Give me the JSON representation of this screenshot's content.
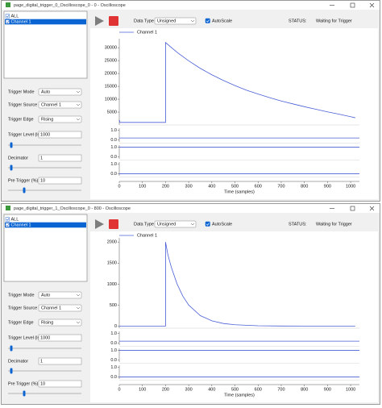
{
  "windows": [
    {
      "title": "page_digital_trigger_0_Oscilloscope_0 - 0 - Oscilloscope",
      "tree": [
        {
          "label": "ALL",
          "selected": false
        },
        {
          "label": "Channel 1",
          "selected": true
        }
      ],
      "controls": [
        {
          "label": "Trigger Mode",
          "value": "Auto",
          "kind": "select"
        },
        {
          "label": "Trigger Source",
          "value": "Channel 1",
          "kind": "select"
        },
        {
          "label": "Trigger Edge",
          "value": "Rising",
          "kind": "select"
        },
        {
          "label": "Trigger Level (lsb)",
          "value": "1000",
          "kind": "input"
        },
        {
          "label": "Decimator",
          "value": "1",
          "kind": "input"
        },
        {
          "label": "Pre Trigger (%)",
          "value": "10",
          "kind": "input"
        }
      ],
      "toolbar": {
        "data_type_label": "Data Type",
        "data_type": "Unsigned",
        "autoscale_label": "AutoScale",
        "autoscale_checked": true,
        "status_label": "STATUS:",
        "status": "Waiting for Trigger"
      },
      "chart_data": {
        "type": "line",
        "x_label": "Time (samples)",
        "xlim": [
          0,
          1038
        ],
        "xticks": [
          0,
          100,
          200,
          300,
          400,
          500,
          600,
          700,
          800,
          900,
          1000
        ],
        "ylim": [
          0,
          33500
        ],
        "yticks": [
          5000,
          10000,
          15000,
          20000,
          25000,
          30000
        ],
        "series": [
          {
            "name": "Channel 1",
            "color": "#4a5fd6",
            "x": [
              0,
              3,
              200,
              200,
              250,
              300,
              350,
              400,
              450,
              500,
              550,
              600,
              650,
              700,
              750,
              800,
              850,
              900,
              950,
              1000,
              1020
            ],
            "values": [
              2000,
              1000,
              1000,
              32000,
              28200,
              24900,
              22000,
              19500,
              17300,
              15300,
              13500,
              12000,
              10600,
              9300,
              8200,
              7100,
              6100,
              5100,
              4200,
              3200,
              2800
            ]
          }
        ],
        "subplots": [
          {
            "ylim": [
              -0.2,
              1.2
            ],
            "yticks": [
              {
                "value": 0,
                "label": "0.0"
              },
              {
                "value": 1,
                "label": "1.0"
              }
            ],
            "x": [
              0,
              1038
            ],
            "values": [
              0.2,
              0.2
            ]
          },
          {
            "ylim": [
              -0.2,
              1.2
            ],
            "yticks": [
              {
                "value": 0,
                "label": "0.0"
              },
              {
                "value": 1,
                "label": "1.0"
              }
            ],
            "x": [
              0,
              1038
            ],
            "values": [
              1,
              1
            ]
          },
          {
            "ylim": [
              -0.2,
              1.2
            ],
            "yticks": [
              {
                "value": 0,
                "label": "0.0"
              },
              {
                "value": 1,
                "label": "1.0"
              }
            ],
            "x": [
              0,
              1038
            ],
            "values": [
              0,
              0
            ]
          }
        ]
      }
    },
    {
      "title": "page_digital_trigger_1_Oscilloscope_0 - 800 - Oscilloscope",
      "tree": [
        {
          "label": "ALL",
          "selected": false
        },
        {
          "label": "Channel 1",
          "selected": true
        }
      ],
      "controls": [
        {
          "label": "Trigger Mode",
          "value": "Auto",
          "kind": "select"
        },
        {
          "label": "Trigger Source",
          "value": "Channel 1",
          "kind": "select"
        },
        {
          "label": "Trigger Edge",
          "value": "Rising",
          "kind": "select"
        },
        {
          "label": "Trigger Level (lsb)",
          "value": "1000",
          "kind": "input"
        },
        {
          "label": "Decimator",
          "value": "1",
          "kind": "input"
        },
        {
          "label": "Pre Trigger (%)",
          "value": "10",
          "kind": "input"
        }
      ],
      "toolbar": {
        "data_type_label": "Data Type",
        "data_type": "Unsigned",
        "autoscale_label": "AutoScale",
        "autoscale_checked": true,
        "status_label": "STATUS:",
        "status": "Waiting for Trigger"
      },
      "chart_data": {
        "type": "line",
        "x_label": "Time (samples)",
        "xlim": [
          0,
          1038
        ],
        "xticks": [
          0,
          100,
          200,
          300,
          400,
          500,
          600,
          700,
          800,
          900,
          1000
        ],
        "ylim": [
          -50,
          2100
        ],
        "yticks": [
          0,
          500,
          1000,
          1500,
          2000
        ],
        "series": [
          {
            "name": "Channel 1",
            "color": "#4a5fd6",
            "x": [
              0,
              200,
              200,
              210,
              225,
              250,
              275,
              300,
              350,
              400,
              450,
              500,
              600,
              700,
              800,
              1020
            ],
            "values": [
              0,
              0,
              2000,
              1700,
              1400,
              1000,
              710,
              500,
              250,
              125,
              62,
              31,
              8,
              2,
              0,
              0
            ]
          }
        ],
        "subplots": [
          {
            "ylim": [
              -0.2,
              1.2
            ],
            "yticks": [
              {
                "value": 0,
                "label": "0.0"
              },
              {
                "value": 1,
                "label": "1.0"
              }
            ],
            "x": [
              0,
              1038
            ],
            "values": [
              0.2,
              0.2
            ]
          },
          {
            "ylim": [
              -0.2,
              1.2
            ],
            "yticks": [
              {
                "value": 0,
                "label": "0.0"
              },
              {
                "value": 1,
                "label": "1.0"
              }
            ],
            "x": [
              0,
              1038
            ],
            "values": [
              1,
              1
            ]
          },
          {
            "ylim": [
              -0.2,
              1.2
            ],
            "yticks": [
              {
                "value": 0,
                "label": "0.0"
              },
              {
                "value": 1,
                "label": "1.0"
              }
            ],
            "x": [
              0,
              1038
            ],
            "values": [
              0,
              0
            ]
          }
        ]
      }
    }
  ]
}
